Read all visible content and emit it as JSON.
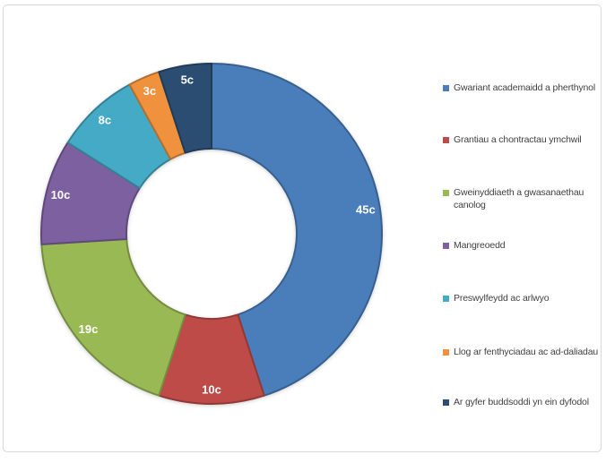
{
  "page": {
    "background": "#ffffff",
    "frame_border_color": "#d8d8d8"
  },
  "chart_data": {
    "type": "pie",
    "subtype": "donut",
    "title": "",
    "unit": "c",
    "legend_position": "right",
    "hole_ratio": 0.5,
    "total": 100,
    "label_color": "#ffffff",
    "legend_text_color": "#3f3f3f",
    "segments": [
      {
        "label": "Gwariant academaidd a pherthynol",
        "value": 45,
        "value_label": "45c",
        "color": "#4a7ebb"
      },
      {
        "label": "Grantiau a chontractau ymchwil",
        "value": 10,
        "value_label": "10c",
        "color": "#be4b48"
      },
      {
        "label": "Gweinyddiaeth a gwasanaethau canolog",
        "value": 19,
        "value_label": "19c",
        "color": "#98b954",
        "legend_two_line": true
      },
      {
        "label": "Mangreoedd",
        "value": 10,
        "value_label": "10c",
        "color": "#7d60a0"
      },
      {
        "label": "Preswylfeydd ac arlwyo",
        "value": 8,
        "value_label": "8c",
        "color": "#45aac6"
      },
      {
        "label": "Llog ar fenthyciadau ac ad-daliadau",
        "value": 3,
        "value_label": "3c",
        "color": "#f0913d"
      },
      {
        "label": "Ar gyfer buddsoddi yn ein dyfodol",
        "value": 5,
        "value_label": "5c",
        "color": "#2c4d72"
      }
    ]
  }
}
